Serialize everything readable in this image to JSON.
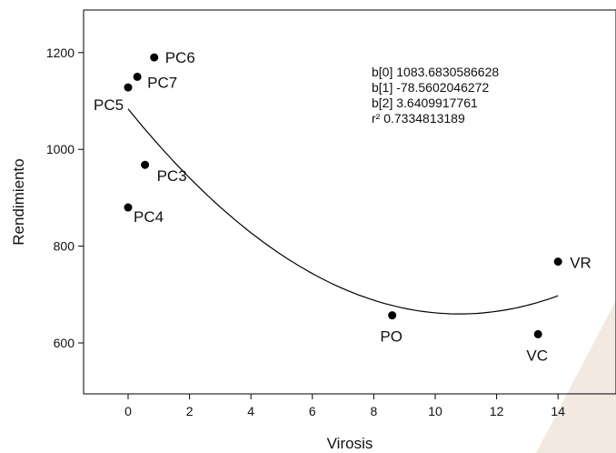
{
  "chart_data": {
    "type": "scatter",
    "title": "",
    "xlabel": "Virosis",
    "ylabel": "Rendimiento",
    "xlim": [
      -1.5,
      16
    ],
    "ylim": [
      500,
      1280
    ],
    "xticks": [
      0,
      2,
      4,
      6,
      8,
      10,
      12,
      14
    ],
    "yticks": [
      600,
      800,
      1000,
      1200
    ],
    "grid": false,
    "points": [
      {
        "label": "PC6",
        "x": 0.85,
        "y": 1190
      },
      {
        "label": "PC7",
        "x": 0.3,
        "y": 1150
      },
      {
        "label": "PC5",
        "x": 0.0,
        "y": 1128
      },
      {
        "label": "PC3",
        "x": 0.55,
        "y": 968
      },
      {
        "label": "PC4",
        "x": 0.0,
        "y": 880
      },
      {
        "label": "PO",
        "x": 8.6,
        "y": 657
      },
      {
        "label": "VC",
        "x": 13.35,
        "y": 618
      },
      {
        "label": "VR",
        "x": 14.0,
        "y": 768
      }
    ],
    "fit": {
      "type": "quadratic",
      "b0": 1083.6830586628,
      "b1": -78.5602046272,
      "b2": 3.6409917761,
      "x_range": [
        0,
        14
      ]
    },
    "annotations": [
      "b[0]  1083.6830586628",
      "b[1]  -78.5602046272",
      "b[2]  3.6409917761",
      "r²  0.7334813189"
    ]
  },
  "colors": {
    "points": "#000000",
    "fit_line": "#000000",
    "axes": "#000000",
    "watermark": "#f4e9e1"
  }
}
